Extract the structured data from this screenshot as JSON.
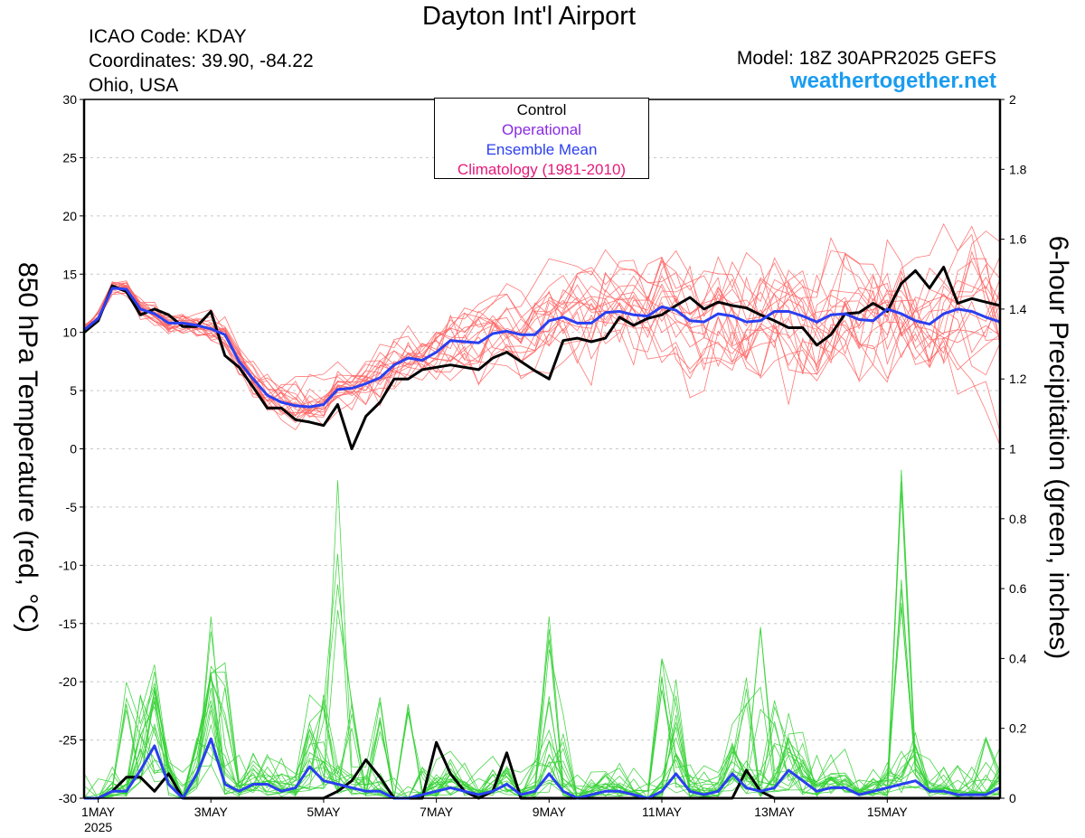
{
  "title": "Dayton Int'l Airport",
  "meta_left": [
    "ICAO Code: KDAY",
    "Coordinates: 39.90, -84.22",
    "Ohio, USA"
  ],
  "model": "Model: 18Z 30APR2025 GEFS",
  "site": "weathertogether.net",
  "y_left_label": "850 hPa Temperature (red, °C)",
  "y_right_label": "6-hour Precipitation (green, inches)",
  "legend": [
    {
      "label": "Control",
      "color": "#000000"
    },
    {
      "label": "Operational",
      "color": "#8a2be2"
    },
    {
      "label": "Ensemble Mean",
      "color": "#2a3ff0"
    },
    {
      "label": "Climatology (1981-2010)",
      "color": "#e6197a"
    }
  ],
  "colors": {
    "members_temp": "#ff6060",
    "members_precip": "#35d135",
    "control": "#000000",
    "mean": "#2a3ff0"
  },
  "chart_data": {
    "type": "line",
    "x_unit": "6-hour steps from 00Z 1 May 2025",
    "x_ticks": [
      {
        "step": 0,
        "label": "1MAY"
      },
      {
        "step": 8,
        "label": "3MAY"
      },
      {
        "step": 16,
        "label": "5MAY"
      },
      {
        "step": 24,
        "label": "7MAY"
      },
      {
        "step": 32,
        "label": "9MAY"
      },
      {
        "step": 40,
        "label": "11MAY"
      },
      {
        "step": 48,
        "label": "13MAY"
      },
      {
        "step": 56,
        "label": "15MAY"
      }
    ],
    "x_sublabel": "2025",
    "xlim": [
      -1,
      64
    ],
    "y_left": {
      "min": -30,
      "max": 30,
      "ticks": [
        30,
        25,
        20,
        15,
        10,
        5,
        0,
        -5,
        -10,
        -15,
        -20,
        -25,
        -30
      ]
    },
    "y_right": {
      "min": 0,
      "max": 2,
      "ticks": [
        2,
        1.8,
        1.6,
        1.4,
        1.2,
        1,
        0.8,
        0.6,
        0.4,
        0.2,
        0
      ]
    },
    "grid": true,
    "series": [
      {
        "name": "Control",
        "axis": "left",
        "x": [
          -1,
          0,
          1,
          2,
          3,
          4,
          5,
          6,
          7,
          8,
          9,
          10,
          11,
          12,
          13,
          14,
          15,
          16,
          17,
          18,
          19,
          20,
          21,
          22,
          23,
          24,
          25,
          26,
          27,
          28,
          29,
          30,
          31,
          32,
          33,
          34,
          35,
          36,
          37,
          38,
          39,
          40,
          41,
          42,
          43,
          44,
          45,
          46,
          47,
          48,
          49,
          50,
          51,
          52,
          53,
          54,
          55,
          56,
          57,
          58,
          59,
          60,
          61,
          62,
          63,
          64
        ],
        "values": [
          10.0,
          11.0,
          14.0,
          13.5,
          11.5,
          12.0,
          11.5,
          10.5,
          10.5,
          11.8,
          8.0,
          7.0,
          5.3,
          3.5,
          3.5,
          2.5,
          2.3,
          2.0,
          3.8,
          0.0,
          2.8,
          4.0,
          6.0,
          6.0,
          6.8,
          7.0,
          7.2,
          7.0,
          6.8,
          7.8,
          8.3,
          7.5,
          6.7,
          6.0,
          9.3,
          9.5,
          9.2,
          9.5,
          11.3,
          10.6,
          11.2,
          11.5,
          12.3,
          13.0,
          12.0,
          12.6,
          12.3,
          12.1,
          11.5,
          11.0,
          10.4,
          10.4,
          8.9,
          9.8,
          11.6,
          11.7,
          12.5,
          11.8,
          14.2,
          15.3,
          13.8,
          15.6,
          12.5,
          12.9,
          12.6,
          12.3
        ]
      },
      {
        "name": "Ensemble Mean",
        "axis": "left",
        "x": [
          -1,
          0,
          1,
          2,
          3,
          4,
          5,
          6,
          7,
          8,
          9,
          10,
          11,
          12,
          13,
          14,
          15,
          16,
          17,
          18,
          19,
          20,
          21,
          22,
          23,
          24,
          25,
          26,
          27,
          28,
          29,
          30,
          31,
          32,
          33,
          34,
          35,
          36,
          37,
          38,
          39,
          40,
          41,
          42,
          43,
          44,
          45,
          46,
          47,
          48,
          49,
          50,
          51,
          52,
          53,
          54,
          55,
          56,
          57,
          58,
          59,
          60,
          61,
          62,
          63,
          64
        ],
        "values": [
          10.2,
          11.2,
          13.8,
          13.7,
          12.0,
          11.6,
          10.8,
          10.8,
          10.6,
          10.3,
          9.8,
          7.5,
          6.0,
          4.6,
          4.0,
          3.7,
          3.6,
          3.8,
          5.1,
          5.2,
          5.6,
          6.1,
          7.2,
          7.8,
          7.6,
          8.3,
          9.3,
          9.2,
          9.1,
          9.9,
          10.1,
          9.8,
          9.8,
          11.0,
          11.3,
          10.8,
          10.8,
          11.7,
          11.8,
          11.5,
          11.4,
          12.2,
          11.9,
          11.0,
          10.9,
          11.6,
          11.4,
          10.9,
          11.0,
          11.8,
          11.8,
          11.4,
          10.9,
          11.5,
          11.6,
          11.1,
          11.0,
          12.0,
          11.6,
          11.0,
          10.7,
          11.6,
          12.0,
          11.8,
          11.3,
          10.9
        ]
      },
      {
        "name": "Control precipitation",
        "axis": "right",
        "x": [
          -1,
          0,
          1,
          2,
          3,
          4,
          5,
          6,
          7,
          8,
          9,
          10,
          11,
          12,
          13,
          14,
          15,
          16,
          17,
          18,
          19,
          20,
          21,
          22,
          23,
          24,
          25,
          26,
          27,
          28,
          29,
          30,
          31,
          32,
          33,
          34,
          35,
          36,
          37,
          38,
          39,
          40,
          41,
          42,
          43,
          44,
          45,
          46,
          47,
          48,
          49,
          50,
          51,
          52,
          53,
          54,
          55,
          56,
          57,
          58,
          59,
          60,
          61,
          62,
          63,
          64
        ],
        "values": [
          0,
          0,
          0.02,
          0.06,
          0.06,
          0.02,
          0.07,
          0,
          0,
          0,
          0,
          0,
          0,
          0,
          0,
          0,
          0,
          0,
          0.02,
          0.05,
          0.11,
          0.06,
          0,
          0,
          0,
          0.16,
          0.07,
          0.02,
          0,
          0.02,
          0.13,
          0,
          0,
          0,
          0,
          0,
          0,
          0,
          0,
          0,
          0,
          0,
          0,
          0,
          0,
          0,
          0,
          0.08,
          0.02,
          0,
          0,
          0,
          0,
          0,
          0,
          0,
          0,
          0,
          0,
          0,
          0,
          0,
          0,
          0,
          0,
          0
        ]
      },
      {
        "name": "Ensemble Mean precipitation",
        "axis": "right",
        "x": [
          -1,
          0,
          1,
          2,
          3,
          4,
          5,
          6,
          7,
          8,
          9,
          10,
          11,
          12,
          13,
          14,
          15,
          16,
          17,
          18,
          19,
          20,
          21,
          22,
          23,
          24,
          25,
          26,
          27,
          28,
          29,
          30,
          31,
          32,
          33,
          34,
          35,
          36,
          37,
          38,
          39,
          40,
          41,
          42,
          43,
          44,
          45,
          46,
          47,
          48,
          49,
          50,
          51,
          52,
          53,
          54,
          55,
          56,
          57,
          58,
          59,
          60,
          61,
          62,
          63,
          64
        ],
        "values": [
          0,
          0,
          0.02,
          0.02,
          0.08,
          0.15,
          0.04,
          0,
          0.07,
          0.17,
          0.04,
          0.02,
          0.04,
          0.04,
          0.02,
          0.03,
          0.09,
          0.05,
          0.04,
          0.03,
          0.02,
          0.02,
          0.0,
          0.0,
          0.01,
          0.02,
          0.03,
          0.02,
          0.01,
          0.02,
          0.04,
          0.01,
          0.02,
          0.07,
          0.02,
          0.0,
          0.01,
          0.02,
          0.02,
          0.01,
          0.0,
          0.02,
          0.07,
          0.02,
          0.01,
          0.02,
          0.07,
          0.03,
          0.02,
          0.03,
          0.08,
          0.05,
          0.02,
          0.03,
          0.03,
          0.01,
          0.02,
          0.03,
          0.04,
          0.05,
          0.02,
          0.02,
          0.01,
          0.01,
          0.01,
          0.03
        ]
      }
    ]
  }
}
